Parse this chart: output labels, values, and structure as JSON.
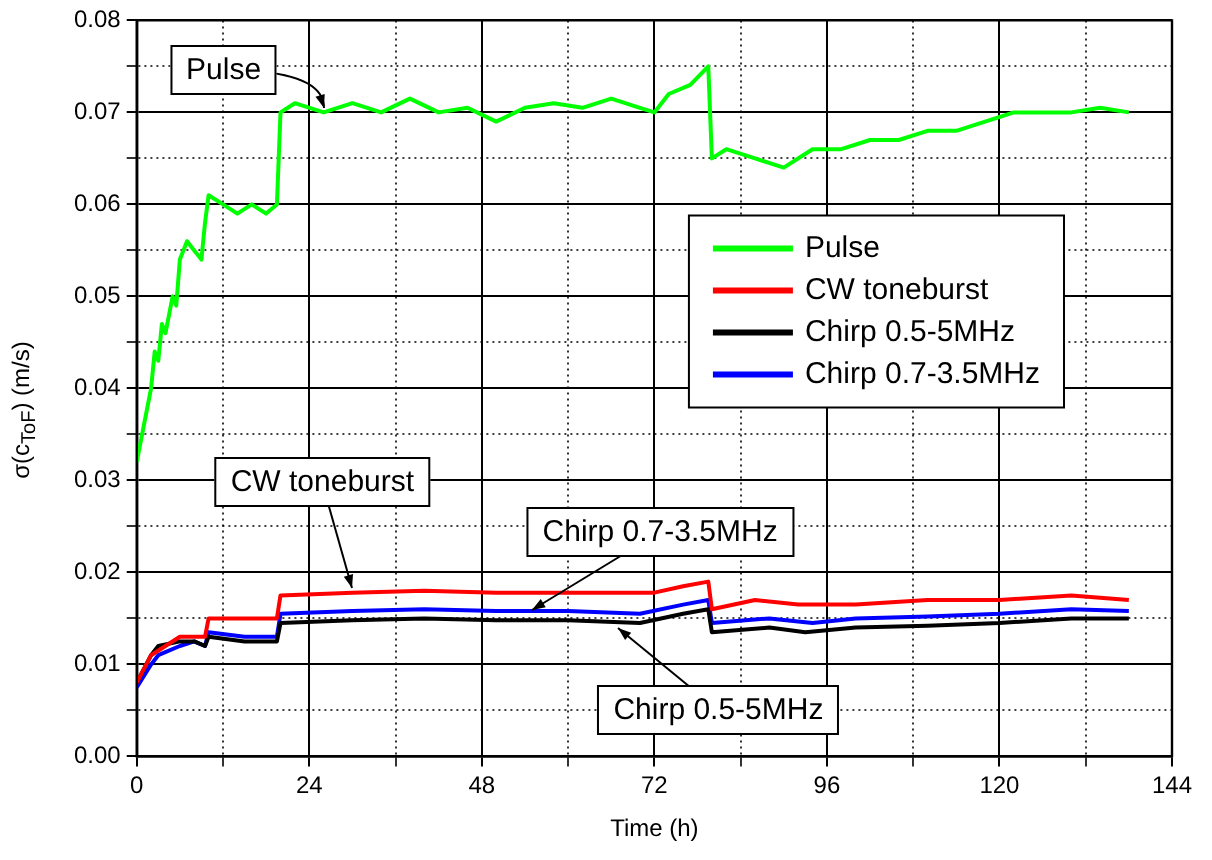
{
  "chart_data": {
    "type": "line",
    "xlabel": "Time (h)",
    "ylabel": "σ(c$_{ToF}$) (m/s)",
    "xlim": [
      0,
      144
    ],
    "xticks": [
      0,
      {
        "value": 12,
        "label": null
      },
      24,
      {
        "value": 36,
        "label": null
      },
      48,
      {
        "value": 60,
        "label": null
      },
      72,
      {
        "value": 84,
        "label": null
      },
      96,
      {
        "value": 108,
        "label": null
      },
      120,
      {
        "value": 132,
        "label": null
      },
      144
    ],
    "ylim": [
      0,
      0.08
    ],
    "yticks": [
      {
        "value": 0,
        "label": "0.00"
      },
      {
        "value": 0.005,
        "label": null
      },
      {
        "value": 0.01,
        "label": "0.01"
      },
      {
        "value": 0.015,
        "label": null
      },
      {
        "value": 0.02,
        "label": "0.02"
      },
      {
        "value": 0.025,
        "label": null
      },
      {
        "value": 0.03,
        "label": "0.03"
      },
      {
        "value": 0.035,
        "label": null
      },
      {
        "value": 0.04,
        "label": "0.04"
      },
      {
        "value": 0.045,
        "label": null
      },
      {
        "value": 0.05,
        "label": "0.05"
      },
      {
        "value": 0.055,
        "label": null
      },
      {
        "value": 0.06,
        "label": "0.06"
      },
      {
        "value": 0.065,
        "label": null
      },
      {
        "value": 0.07,
        "label": "0.07"
      },
      {
        "value": 0.075,
        "label": null
      },
      {
        "value": 0.08,
        "label": "0.08"
      }
    ],
    "grid": true,
    "legend": "right",
    "marker": "none",
    "line_style": "solid",
    "series": [
      {
        "name": "Pulse",
        "color": "#00ff00",
        "x": [
          0,
          1,
          2,
          2.5,
          3,
          3.5,
          4,
          5,
          5.5,
          6,
          7,
          8,
          9,
          9.5,
          10,
          12,
          14,
          16,
          18,
          19.5,
          20,
          22,
          26,
          30,
          34,
          38,
          42,
          46,
          50,
          54,
          58,
          62,
          66,
          70,
          72,
          74,
          77,
          79.5,
          80,
          82,
          86,
          90,
          94,
          98,
          102,
          106,
          110,
          114,
          118,
          122,
          126,
          130,
          134,
          138
        ],
        "values": [
          0.032,
          0.036,
          0.04,
          0.044,
          0.043,
          0.047,
          0.046,
          0.05,
          0.049,
          0.054,
          0.056,
          0.055,
          0.054,
          0.058,
          0.061,
          0.06,
          0.059,
          0.06,
          0.059,
          0.06,
          0.07,
          0.071,
          0.07,
          0.071,
          0.07,
          0.0715,
          0.07,
          0.0705,
          0.069,
          0.0705,
          0.071,
          0.0705,
          0.0715,
          0.0705,
          0.07,
          0.072,
          0.073,
          0.075,
          0.065,
          0.066,
          0.065,
          0.064,
          0.066,
          0.066,
          0.067,
          0.067,
          0.068,
          0.068,
          0.069,
          0.07,
          0.07,
          0.07,
          0.0705,
          0.07
        ]
      },
      {
        "name": "CW toneburst",
        "color": "#ff0000",
        "x": [
          0,
          2,
          4,
          6,
          8,
          9.5,
          10,
          15,
          19.5,
          20,
          30,
          40,
          50,
          60,
          72,
          76,
          79.5,
          80,
          86,
          92,
          100,
          110,
          120,
          130,
          138
        ],
        "values": [
          0.008,
          0.011,
          0.012,
          0.013,
          0.013,
          0.013,
          0.015,
          0.015,
          0.015,
          0.0175,
          0.0178,
          0.018,
          0.0178,
          0.0178,
          0.0178,
          0.0185,
          0.019,
          0.016,
          0.017,
          0.0165,
          0.0165,
          0.017,
          0.017,
          0.0175,
          0.017
        ]
      },
      {
        "name": "Chirp 0.5-5MHz",
        "color": "#000000",
        "x": [
          0,
          2,
          3,
          6,
          8,
          9.5,
          10,
          15,
          19.5,
          20,
          30,
          40,
          50,
          60,
          70,
          76,
          79.5,
          80,
          88,
          93,
          100,
          110,
          120,
          130,
          138
        ],
        "values": [
          0.008,
          0.011,
          0.012,
          0.0125,
          0.0125,
          0.012,
          0.013,
          0.0125,
          0.0125,
          0.0145,
          0.0148,
          0.015,
          0.0148,
          0.0148,
          0.0145,
          0.0155,
          0.016,
          0.0135,
          0.014,
          0.0135,
          0.014,
          0.0142,
          0.0145,
          0.015,
          0.015
        ]
      },
      {
        "name": "Chirp 0.7-3.5MHz",
        "color": "#0000ff",
        "x": [
          0,
          2,
          3,
          6,
          8,
          9.5,
          10,
          15,
          19.5,
          20,
          30,
          40,
          50,
          60,
          70,
          76,
          79.5,
          80,
          88,
          94,
          100,
          110,
          120,
          130,
          138
        ],
        "values": [
          0.0075,
          0.01,
          0.011,
          0.012,
          0.0125,
          0.012,
          0.0135,
          0.013,
          0.013,
          0.0155,
          0.0158,
          0.016,
          0.0158,
          0.0158,
          0.0155,
          0.0165,
          0.017,
          0.0145,
          0.015,
          0.0145,
          0.015,
          0.0152,
          0.0155,
          0.016,
          0.0158
        ]
      }
    ],
    "annotations": [
      {
        "text": "Pulse",
        "x": 26,
        "y": 0.0705
      },
      {
        "text": "CW toneburst",
        "x": 30,
        "y": 0.0184
      },
      {
        "text": "Chirp 0.7-3.5MHz",
        "x": 55,
        "y": 0.016
      },
      {
        "text": "Chirp 0.5-5MHz",
        "x": 67,
        "y": 0.014
      }
    ]
  }
}
